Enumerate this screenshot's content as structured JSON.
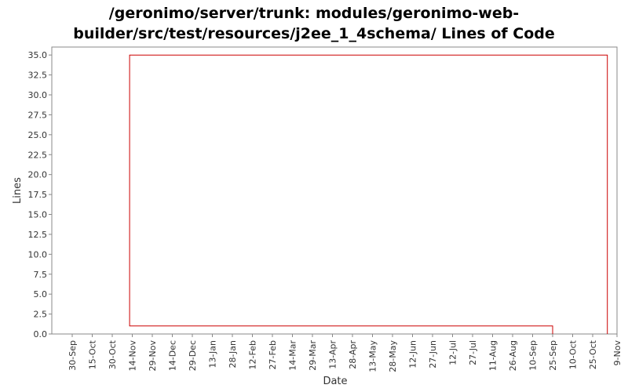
{
  "chart_data": {
    "type": "line",
    "title_line1": "/geronimo/server/trunk: modules/geronimo-web-",
    "title_line2": "builder/src/test/resources/j2ee_1_4schema/ Lines of Code",
    "xlabel": "Date",
    "ylabel": "Lines",
    "ylim": [
      0,
      36
    ],
    "yticks": [
      "0.0",
      "2.5",
      "5.0",
      "7.5",
      "10.0",
      "12.5",
      "15.0",
      "17.5",
      "20.0",
      "22.5",
      "25.0",
      "27.5",
      "30.0",
      "32.5",
      "35.0"
    ],
    "xticks": [
      "30-Sep",
      "15-Oct",
      "30-Oct",
      "14-Nov",
      "29-Nov",
      "14-Dec",
      "29-Dec",
      "13-Jan",
      "28-Jan",
      "12-Feb",
      "27-Feb",
      "14-Mar",
      "29-Mar",
      "13-Apr",
      "28-Apr",
      "13-May",
      "28-May",
      "12-Jun",
      "27-Jun",
      "12-Jul",
      "27-Jul",
      "11-Aug",
      "26-Aug",
      "10-Sep",
      "25-Sep",
      "10-Oct",
      "25-Oct",
      "9-Nov"
    ],
    "line_color": "#cc0000",
    "series": [
      {
        "name": "",
        "points": [
          {
            "x": "25-Sep",
            "y": 0
          },
          {
            "x": "25-Sep",
            "y": 1
          },
          {
            "x": "12-Nov",
            "y": 1
          },
          {
            "x": "12-Nov",
            "y": 35
          },
          {
            "x": "5-Nov",
            "y": 35
          },
          {
            "x": "5-Nov",
            "y": 0
          }
        ]
      }
    ]
  }
}
